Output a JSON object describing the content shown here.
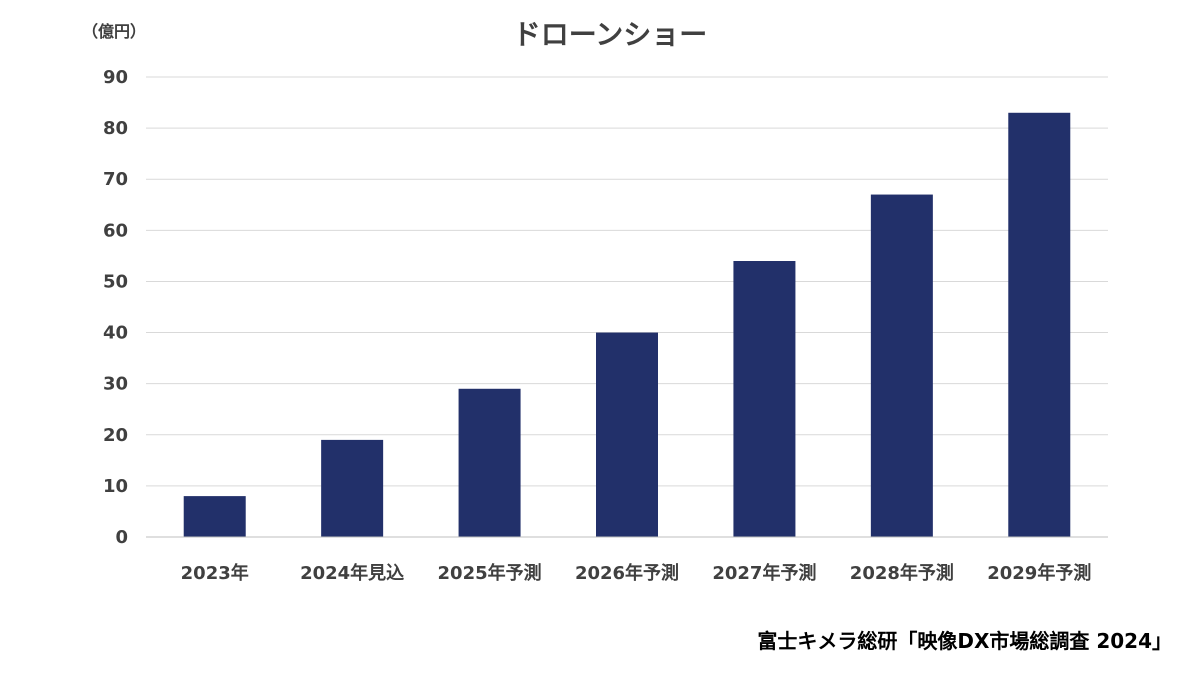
{
  "chart_data": {
    "type": "bar",
    "title": "ドローンショー",
    "unit_label": "（億円）",
    "categories": [
      "2023年",
      "2024年見込",
      "2025年予測",
      "2026年予測",
      "2027年予測",
      "2028年予測",
      "2029年予測"
    ],
    "values": [
      8,
      19,
      29,
      40,
      54,
      67,
      83
    ],
    "ylim": [
      0,
      90
    ],
    "yticks": [
      0,
      10,
      20,
      30,
      40,
      50,
      60,
      70,
      80,
      90
    ],
    "grid": true,
    "bar_color": "#22306A",
    "source": "富士キメラ総研「映像DX市場総調査 2024」"
  }
}
